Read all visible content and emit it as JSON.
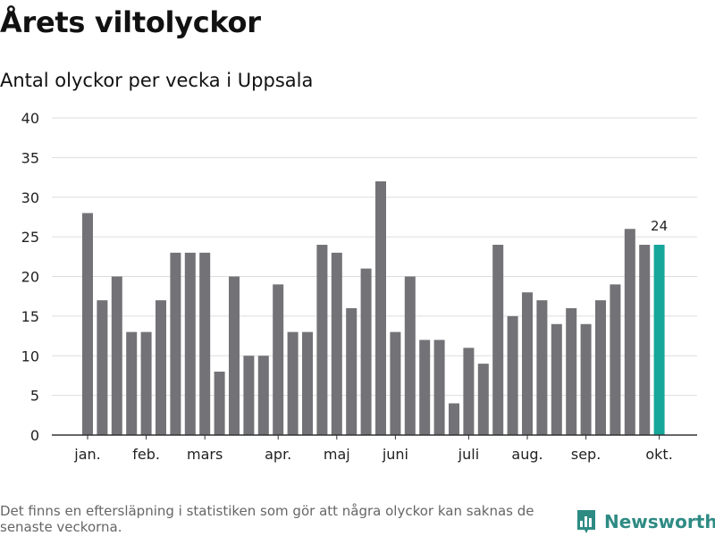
{
  "header": {
    "title": "Årets viltolyckor",
    "subtitle": "Antal olyckor per vecka i Uppsala"
  },
  "chart_data": {
    "type": "bar",
    "title": "Årets viltolyckor",
    "subtitle": "Antal olyckor per vecka i Uppsala",
    "xlabel": "",
    "ylabel": "",
    "ylim": [
      0,
      40
    ],
    "yticks": [
      0,
      5,
      10,
      15,
      20,
      25,
      30,
      35,
      40
    ],
    "grid": true,
    "values": [
      28,
      17,
      20,
      13,
      13,
      17,
      23,
      23,
      23,
      8,
      20,
      10,
      10,
      19,
      13,
      13,
      24,
      23,
      16,
      21,
      32,
      13,
      20,
      12,
      12,
      4,
      11,
      9,
      24,
      15,
      18,
      17,
      14,
      16,
      14,
      17,
      19,
      26,
      24,
      24
    ],
    "month_labels": [
      {
        "label": "jan.",
        "bar_index": 0
      },
      {
        "label": "feb.",
        "bar_index": 4
      },
      {
        "label": "mars",
        "bar_index": 8
      },
      {
        "label": "apr.",
        "bar_index": 13
      },
      {
        "label": "maj",
        "bar_index": 17
      },
      {
        "label": "juni",
        "bar_index": 21
      },
      {
        "label": "juli",
        "bar_index": 26
      },
      {
        "label": "aug.",
        "bar_index": 30
      },
      {
        "label": "sep.",
        "bar_index": 34
      },
      {
        "label": "okt.",
        "bar_index": 39
      }
    ],
    "highlight_index": 39,
    "highlight_label": "24",
    "colors": {
      "bar": "#737276",
      "highlight": "#17a69a",
      "grid": "#dddddd",
      "axis": "#333333",
      "text": "#222222"
    }
  },
  "footer": {
    "note": "Det finns en eftersläpning i statistiken som gör att några olyckor kan saknas de senaste veckorna.",
    "brand": "Newsworthy",
    "brand_icon": "bar-chart-logo-icon",
    "brand_color": "#2e8b84"
  }
}
